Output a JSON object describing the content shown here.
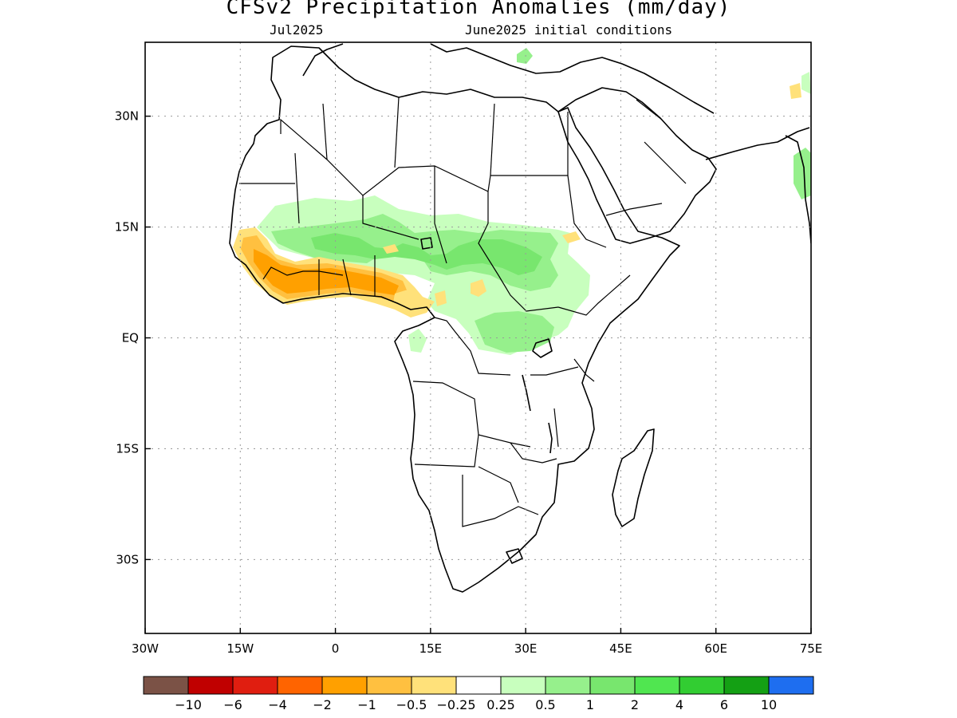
{
  "title": "CFSv2 Precipitation Anomalies (mm/day)",
  "subtitle_left": "Jul2025",
  "subtitle_right": "June2025 initial conditions",
  "map": {
    "lon_range": [
      -30,
      75
    ],
    "lat_range": [
      -40,
      40
    ],
    "lon_ticks": [
      {
        "value": -30,
        "label": "30W"
      },
      {
        "value": -15,
        "label": "15W"
      },
      {
        "value": 0,
        "label": "0"
      },
      {
        "value": 15,
        "label": "15E"
      },
      {
        "value": 30,
        "label": "30E"
      },
      {
        "value": 45,
        "label": "45E"
      },
      {
        "value": 60,
        "label": "60E"
      },
      {
        "value": 75,
        "label": "75E"
      }
    ],
    "lat_ticks": [
      {
        "value": 30,
        "label": "30N"
      },
      {
        "value": 15,
        "label": "15N"
      },
      {
        "value": 0,
        "label": "EQ"
      },
      {
        "value": -15,
        "label": "15S"
      },
      {
        "value": -30,
        "label": "30S"
      }
    ],
    "grid": "dotted"
  },
  "colorbar": {
    "colors": [
      "#7b5246",
      "#c00000",
      "#e01e10",
      "#ff6400",
      "#ffa000",
      "#ffc040",
      "#ffe17a",
      "#ffffff",
      "#c8ffbe",
      "#96f08c",
      "#78e66e",
      "#50e650",
      "#32cd32",
      "#14a014",
      "#1e6ef0"
    ],
    "labels": [
      "−10",
      "−6",
      "−4",
      "−2",
      "−1",
      "−0.5",
      "−0.25",
      "0.25",
      "0.5",
      "1",
      "2",
      "4",
      "6",
      "10"
    ]
  }
}
